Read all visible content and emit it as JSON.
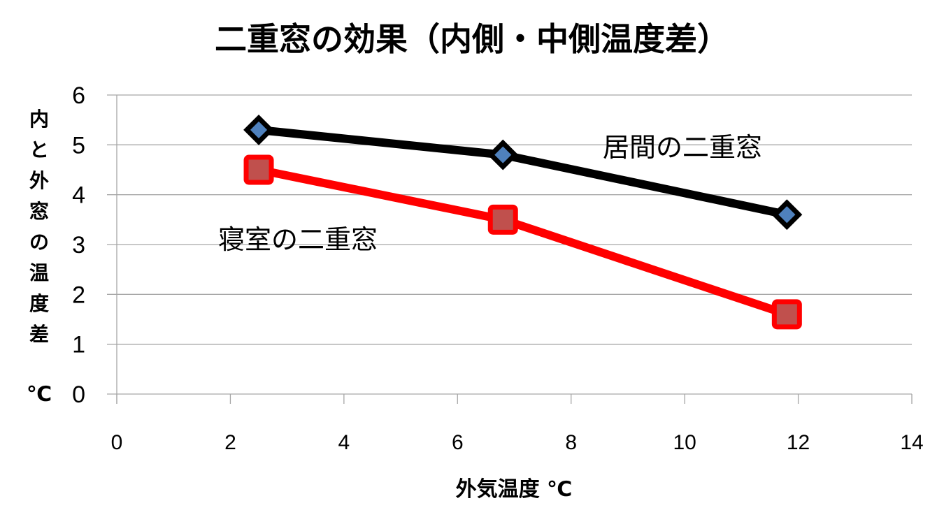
{
  "chart_data": {
    "type": "line",
    "title": "二重窓の効果（内側・中側温度差）",
    "xlabel": "外気温度 ℃",
    "ylabel": "内と外窓の温度差",
    "ylabel_unit": "℃",
    "xlim": [
      0,
      14
    ],
    "ylim": [
      0,
      6
    ],
    "xticks": [
      0,
      2,
      4,
      6,
      8,
      10,
      12,
      14
    ],
    "yticks": [
      0,
      1,
      2,
      3,
      4,
      5,
      6
    ],
    "grid": "horizontal",
    "legend": "none",
    "series": [
      {
        "name": "居間の二重窓",
        "color": "#000000",
        "marker": "diamond",
        "marker_color": "#4f81bd",
        "x": [
          2.5,
          6.8,
          11.8
        ],
        "y": [
          5.3,
          4.8,
          3.6
        ]
      },
      {
        "name": "寝室の二重窓",
        "color": "#ff0000",
        "marker": "square",
        "marker_color": "#c0504d",
        "x": [
          2.5,
          6.8,
          11.8
        ],
        "y": [
          4.5,
          3.5,
          1.6
        ]
      }
    ],
    "annotations": [
      {
        "text": "居間の二重窓",
        "series": 0
      },
      {
        "text": "寝室の二重窓",
        "series": 1
      }
    ]
  }
}
